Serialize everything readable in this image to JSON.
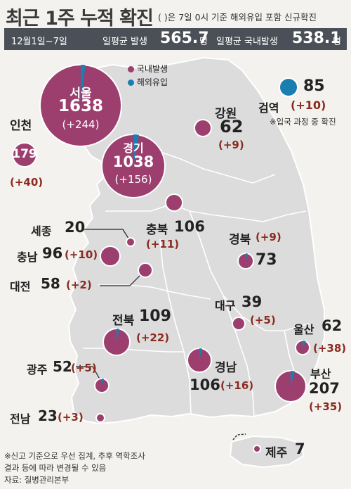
{
  "title": "최근 1주 누적 확진",
  "title_note": "( )은 7일 0시 기준 해외유입 포함 신규확진",
  "summary": {
    "period": "12월1일~7일",
    "avg_total_label": "일평균 발생",
    "avg_total_value": "565.7",
    "avg_total_unit": "명",
    "avg_domestic_label": "일평균 국내발생",
    "avg_domestic_value": "538.1",
    "avg_domestic_unit": "명"
  },
  "legend": {
    "domestic": "국내발생",
    "overseas": "해외유입",
    "domestic_color": "#9c3e6e",
    "overseas_color": "#1a7fb0"
  },
  "regions": {
    "seoul": {
      "name": "서울",
      "total": "1638",
      "new": "(+244)"
    },
    "gyeonggi": {
      "name": "경기",
      "total": "1038",
      "new": "(+156)"
    },
    "incheon": {
      "name": "인천",
      "total": "179",
      "new": "(+40)"
    },
    "gangwon": {
      "name": "강원",
      "total": "62",
      "new": "(+9)"
    },
    "quarantine": {
      "name": "검역",
      "total": "85",
      "new": "(+10)",
      "note": "※입국 과정 중 확진"
    },
    "sejong": {
      "name": "세종",
      "total": "20"
    },
    "chungbuk": {
      "name": "충북",
      "total": "106",
      "new": "(+11)"
    },
    "chungnam": {
      "name": "충남",
      "total": "96",
      "new": "(+10)"
    },
    "daejeon": {
      "name": "대전",
      "total": "58",
      "new": "(+2)"
    },
    "gyeongbuk": {
      "name": "경북",
      "total": "73",
      "new": "(+9)"
    },
    "daegu": {
      "name": "대구",
      "total": "39",
      "new": "(+5)"
    },
    "jeonbuk": {
      "name": "전북",
      "total": "109",
      "new": "(+22)"
    },
    "ulsan": {
      "name": "울산",
      "total": "62",
      "new": "(+38)"
    },
    "gwangju": {
      "name": "광주",
      "total": "52",
      "new": "(+5)"
    },
    "gyeongnam": {
      "name": "경남",
      "total": "106",
      "new": "(+16)"
    },
    "busan": {
      "name": "부산",
      "total": "207",
      "new": "(+35)"
    },
    "jeonnam": {
      "name": "전남",
      "total": "23",
      "new": "(+3)"
    },
    "jeju": {
      "name": "제주",
      "total": "7"
    }
  },
  "footnote": {
    "line1": "※신고 기준으로 우선 집계, 추후 역학조사",
    "line2": "결과 등에 따라 변경될 수 있음",
    "source": "자료: 질병관리본부"
  },
  "colors": {
    "bubble": "#9c3e6e",
    "bubble_border": "#ffffff",
    "overseas": "#1a7fb0",
    "delta": "#8b2a1e",
    "land": "#dcdcdc",
    "header_bar": "#4b4f57"
  }
}
